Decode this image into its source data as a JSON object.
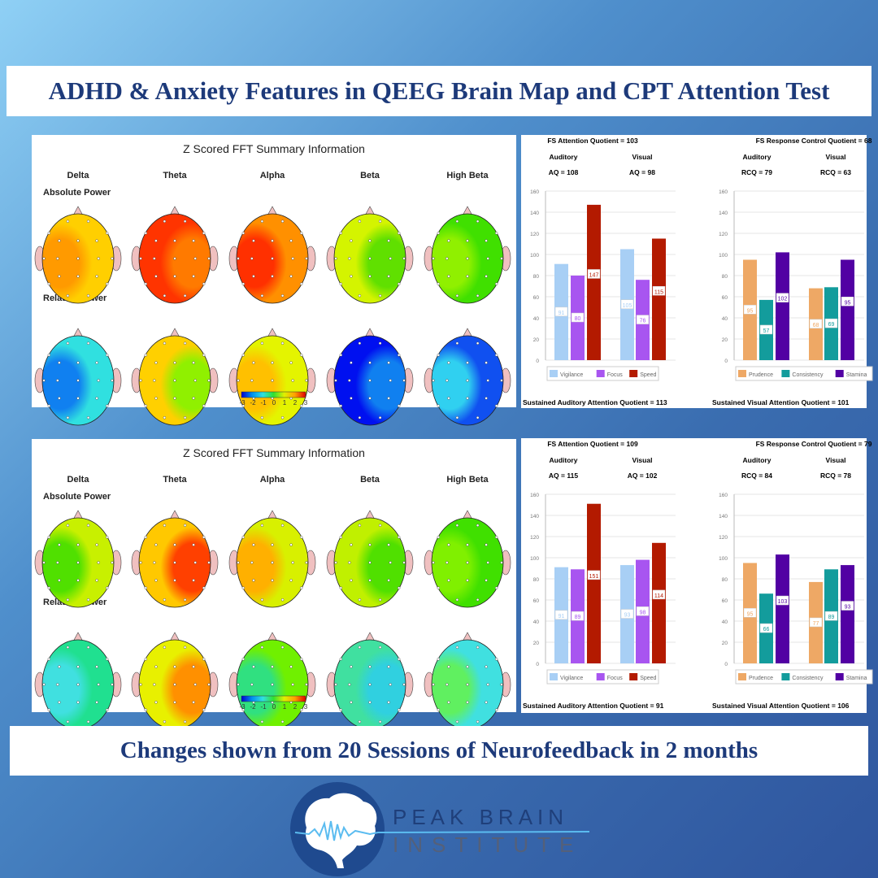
{
  "title": "ADHD & Anxiety Features in QEEG Brain Map and CPT Attention Test",
  "caption": "Changes shown from 20 Sessions of Neurofeedback in 2 months",
  "logo": {
    "line1": "PEAK BRAIN",
    "line2": "INSTITUTE"
  },
  "brain_maps": [
    {
      "title": "Z Scored FFT Summary Information",
      "bands": [
        "Delta",
        "Theta",
        "Alpha",
        "Beta",
        "High Beta"
      ],
      "rows": [
        "Absolute Power",
        "Relative Power"
      ],
      "colorbar_ticks": [
        "-3",
        "-2",
        "-1",
        "0",
        "1",
        "2",
        "3"
      ],
      "heads": [
        [
          {
            "base": "#ffcf00",
            "accent": "#ff9a00"
          },
          {
            "base": "#ff3400",
            "accent": "#ff7a00"
          },
          {
            "base": "#ff9000",
            "accent": "#ff3000"
          },
          {
            "base": "#d4f400",
            "accent": "#60e000"
          },
          {
            "base": "#40e000",
            "accent": "#90f000"
          }
        ],
        [
          {
            "base": "#30e0e0",
            "accent": "#1080f0"
          },
          {
            "base": "#ffd000",
            "accent": "#90f000"
          },
          {
            "base": "#e4f400",
            "accent": "#ffc000"
          },
          {
            "base": "#0010f0",
            "accent": "#1080f0"
          },
          {
            "base": "#1050f0",
            "accent": "#30d0f0"
          }
        ]
      ]
    },
    {
      "title": "Z Scored FFT Summary Information",
      "bands": [
        "Delta",
        "Theta",
        "Alpha",
        "Beta",
        "High Beta"
      ],
      "rows": [
        "Absolute Power",
        "Relative Power"
      ],
      "colorbar_ticks": [
        "-3",
        "-2",
        "-1",
        "0",
        "1",
        "2",
        "3"
      ],
      "heads": [
        [
          {
            "base": "#c8f000",
            "accent": "#50e000"
          },
          {
            "base": "#ffc800",
            "accent": "#ff4000"
          },
          {
            "base": "#d8f000",
            "accent": "#ffb000"
          },
          {
            "base": "#c0f000",
            "accent": "#50e000"
          },
          {
            "base": "#40e000",
            "accent": "#80f000"
          }
        ],
        [
          {
            "base": "#20e090",
            "accent": "#40e0e0"
          },
          {
            "base": "#e8f000",
            "accent": "#ff9000"
          },
          {
            "base": "#70f000",
            "accent": "#30e080"
          },
          {
            "base": "#40e0a0",
            "accent": "#30d0e0"
          },
          {
            "base": "#40e0e0",
            "accent": "#60f060"
          }
        ]
      ]
    }
  ],
  "cpt": [
    {
      "attention": {
        "header": "FS Attention Quotient = 103",
        "groups": [
          "Auditory",
          "Visual"
        ],
        "quotients": [
          "AQ = 108",
          "AQ = 98"
        ],
        "legend": [
          "Vigilance",
          "Focus",
          "Speed"
        ],
        "colors": [
          "#a8cff5",
          "#a855f0",
          "#b31a00"
        ],
        "values": [
          [
            91,
            80,
            147
          ],
          [
            105,
            76,
            115
          ]
        ],
        "footer": "Sustained Auditory Attention Quotient = 113"
      },
      "response": {
        "header": "FS Response Control Quotient = 68",
        "groups": [
          "Auditory",
          "Visual"
        ],
        "quotients": [
          "RCQ = 79",
          "RCQ = 63"
        ],
        "legend": [
          "Prudence",
          "Consistency",
          "Stamina"
        ],
        "colors": [
          "#eea865",
          "#139c9c",
          "#5200a3"
        ],
        "values": [
          [
            95,
            57,
            102
          ],
          [
            68,
            69,
            95
          ]
        ],
        "footer": "Sustained Visual Attention Quotient = 101"
      }
    },
    {
      "attention": {
        "header": "FS Attention Quotient = 109",
        "groups": [
          "Auditory",
          "Visual"
        ],
        "quotients": [
          "AQ = 115",
          "AQ = 102"
        ],
        "legend": [
          "Vigilance",
          "Focus",
          "Speed"
        ],
        "colors": [
          "#a8cff5",
          "#a855f0",
          "#b31a00"
        ],
        "values": [
          [
            91,
            89,
            151
          ],
          [
            93,
            98,
            114
          ]
        ],
        "footer": "Sustained Auditory Attention Quotient = 91"
      },
      "response": {
        "header": "FS Response Control Quotient = 79",
        "groups": [
          "Auditory",
          "Visual"
        ],
        "quotients": [
          "RCQ = 84",
          "RCQ = 78"
        ],
        "legend": [
          "Prudence",
          "Consistency",
          "Stamina"
        ],
        "colors": [
          "#eea865",
          "#139c9c",
          "#5200a3"
        ],
        "values": [
          [
            95,
            66,
            103
          ],
          [
            77,
            89,
            93
          ]
        ],
        "footer": "Sustained Visual Attention Quotient = 106"
      }
    }
  ],
  "chart_data": [
    {
      "type": "bar",
      "categories": [
        "Auditory",
        "Visual"
      ],
      "ylim": [
        0,
        160
      ],
      "series": [
        {
          "name": "Vigilance",
          "values": [
            91,
            105
          ]
        },
        {
          "name": "Focus",
          "values": [
            80,
            76
          ]
        },
        {
          "name": "Speed",
          "values": [
            147,
            115
          ]
        }
      ]
    },
    {
      "type": "bar",
      "categories": [
        "Auditory",
        "Visual"
      ],
      "ylim": [
        0,
        160
      ],
      "series": [
        {
          "name": "Prudence",
          "values": [
            95,
            68
          ]
        },
        {
          "name": "Consistency",
          "values": [
            57,
            69
          ]
        },
        {
          "name": "Stamina",
          "values": [
            102,
            95
          ]
        }
      ]
    },
    {
      "type": "bar",
      "categories": [
        "Auditory",
        "Visual"
      ],
      "ylim": [
        0,
        160
      ],
      "series": [
        {
          "name": "Vigilance",
          "values": [
            91,
            93
          ]
        },
        {
          "name": "Focus",
          "values": [
            89,
            98
          ]
        },
        {
          "name": "Speed",
          "values": [
            151,
            114
          ]
        }
      ]
    },
    {
      "type": "bar",
      "categories": [
        "Auditory",
        "Visual"
      ],
      "ylim": [
        0,
        160
      ],
      "series": [
        {
          "name": "Prudence",
          "values": [
            95,
            77
          ]
        },
        {
          "name": "Consistency",
          "values": [
            66,
            89
          ]
        },
        {
          "name": "Stamina",
          "values": [
            103,
            93
          ]
        }
      ]
    }
  ]
}
